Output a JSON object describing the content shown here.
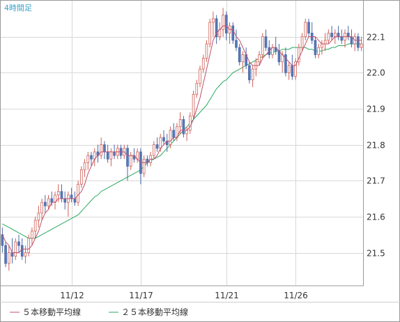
{
  "period_label": "4時間足",
  "legend": [
    {
      "label": "５本移動平均線",
      "color": "#c0506a"
    },
    {
      "label": "２５本移動平均線",
      "color": "#2aa860"
    }
  ],
  "colors": {
    "up_fill": "#ffffff",
    "up_stroke": "#d06058",
    "down_fill": "#5878b8",
    "down_stroke": "#4868a8",
    "grid": "#d8d8d8",
    "frame": "#999999"
  },
  "chart_data": {
    "type": "candlestick",
    "ylim": [
      21.41,
      22.2
    ],
    "yticks": [
      21.5,
      21.6,
      21.7,
      21.8,
      21.9,
      22.0,
      22.1
    ],
    "ytick_labels": [
      "21.5",
      "21.6",
      "21.7",
      "21.8",
      "21.9",
      "22.0",
      "22.1"
    ],
    "x_tick_labels": [
      {
        "label": "11/12",
        "index": 21
      },
      {
        "label": "11/17",
        "index": 42
      },
      {
        "label": "11/21",
        "index": 68
      },
      {
        "label": "11/26",
        "index": 89
      }
    ],
    "n_candles": 110,
    "candles": [
      [
        21.55,
        21.57,
        21.5,
        21.52
      ],
      [
        21.52,
        21.53,
        21.46,
        21.47
      ],
      [
        21.47,
        21.52,
        21.45,
        21.5
      ],
      [
        21.5,
        21.54,
        21.47,
        21.49
      ],
      [
        21.49,
        21.54,
        21.48,
        21.53
      ],
      [
        21.53,
        21.55,
        21.5,
        21.52
      ],
      [
        21.52,
        21.54,
        21.48,
        21.49
      ],
      [
        21.49,
        21.52,
        21.47,
        21.5
      ],
      [
        21.5,
        21.55,
        21.49,
        21.54
      ],
      [
        21.54,
        21.57,
        21.52,
        21.56
      ],
      [
        21.56,
        21.6,
        21.54,
        21.59
      ],
      [
        21.59,
        21.63,
        21.57,
        21.61
      ],
      [
        21.61,
        21.65,
        21.59,
        21.64
      ],
      [
        21.64,
        21.66,
        21.61,
        21.63
      ],
      [
        21.63,
        21.66,
        21.62,
        21.65
      ],
      [
        21.65,
        21.67,
        21.63,
        21.64
      ],
      [
        21.64,
        21.67,
        21.62,
        21.66
      ],
      [
        21.66,
        21.69,
        21.64,
        21.67
      ],
      [
        21.67,
        21.69,
        21.64,
        21.65
      ],
      [
        21.65,
        21.67,
        21.62,
        21.64
      ],
      [
        21.64,
        21.67,
        21.6,
        21.66
      ],
      [
        21.66,
        21.68,
        21.64,
        21.65
      ],
      [
        21.65,
        21.67,
        21.63,
        21.64
      ],
      [
        21.64,
        21.7,
        21.63,
        21.69
      ],
      [
        21.69,
        21.74,
        21.68,
        21.73
      ],
      [
        21.73,
        21.76,
        21.71,
        21.75
      ],
      [
        21.75,
        21.78,
        21.73,
        21.77
      ],
      [
        21.77,
        21.78,
        21.74,
        21.76
      ],
      [
        21.76,
        21.79,
        21.74,
        21.78
      ],
      [
        21.78,
        21.8,
        21.75,
        21.77
      ],
      [
        21.77,
        21.82,
        21.76,
        21.8
      ],
      [
        21.8,
        21.81,
        21.76,
        21.78
      ],
      [
        21.78,
        21.8,
        21.75,
        21.76
      ],
      [
        21.76,
        21.79,
        21.74,
        21.78
      ],
      [
        21.78,
        21.8,
        21.76,
        21.77
      ],
      [
        21.77,
        21.8,
        21.76,
        21.79
      ],
      [
        21.79,
        21.8,
        21.76,
        21.77
      ],
      [
        21.77,
        21.8,
        21.76,
        21.79
      ],
      [
        21.79,
        21.8,
        21.7,
        21.74
      ],
      [
        21.74,
        21.78,
        21.73,
        21.77
      ],
      [
        21.77,
        21.79,
        21.75,
        21.76
      ],
      [
        21.76,
        21.79,
        21.75,
        21.78
      ],
      [
        21.78,
        21.79,
        21.69,
        21.72
      ],
      [
        21.72,
        21.77,
        21.71,
        21.76
      ],
      [
        21.76,
        21.77,
        21.74,
        21.75
      ],
      [
        21.75,
        21.78,
        21.74,
        21.77
      ],
      [
        21.77,
        21.81,
        21.76,
        21.8
      ],
      [
        21.8,
        21.82,
        21.78,
        21.79
      ],
      [
        21.79,
        21.83,
        21.78,
        21.82
      ],
      [
        21.82,
        21.84,
        21.8,
        21.81
      ],
      [
        21.81,
        21.83,
        21.78,
        21.8
      ],
      [
        21.8,
        21.85,
        21.79,
        21.84
      ],
      [
        21.84,
        21.86,
        21.81,
        21.82
      ],
      [
        21.82,
        21.86,
        21.81,
        21.85
      ],
      [
        21.85,
        21.89,
        21.83,
        21.87
      ],
      [
        21.87,
        21.88,
        21.82,
        21.83
      ],
      [
        21.83,
        21.85,
        21.81,
        21.84
      ],
      [
        21.84,
        21.89,
        21.83,
        21.88
      ],
      [
        21.88,
        21.95,
        21.87,
        21.94
      ],
      [
        21.94,
        21.98,
        21.93,
        21.97
      ],
      [
        21.97,
        22.02,
        21.96,
        22.01
      ],
      [
        22.01,
        22.05,
        22.0,
        22.04
      ],
      [
        22.04,
        22.09,
        22.03,
        22.08
      ],
      [
        22.08,
        22.15,
        22.07,
        22.14
      ],
      [
        22.14,
        22.17,
        22.1,
        22.15
      ],
      [
        22.15,
        22.16,
        22.08,
        22.1
      ],
      [
        22.1,
        22.14,
        22.09,
        22.12
      ],
      [
        22.12,
        22.18,
        22.1,
        22.16
      ],
      [
        22.16,
        22.17,
        22.09,
        22.11
      ],
      [
        22.11,
        22.14,
        22.08,
        22.13
      ],
      [
        22.13,
        22.14,
        22.08,
        22.09
      ],
      [
        22.09,
        22.12,
        22.06,
        22.07
      ],
      [
        22.07,
        22.08,
        22.02,
        22.03
      ],
      [
        22.03,
        22.06,
        22.0,
        22.05
      ],
      [
        22.05,
        22.07,
        22.01,
        22.02
      ],
      [
        22.02,
        22.03,
        21.97,
        21.98
      ],
      [
        21.98,
        22.02,
        21.96,
        22.01
      ],
      [
        22.01,
        22.04,
        21.99,
        22.03
      ],
      [
        22.03,
        22.06,
        22.02,
        22.05
      ],
      [
        22.05,
        22.11,
        22.04,
        22.1
      ],
      [
        22.1,
        22.12,
        22.06,
        22.07
      ],
      [
        22.07,
        22.09,
        22.04,
        22.05
      ],
      [
        22.05,
        22.08,
        22.04,
        22.07
      ],
      [
        22.07,
        22.1,
        22.05,
        22.06
      ],
      [
        22.06,
        22.08,
        22.02,
        22.03
      ],
      [
        22.03,
        22.06,
        22.0,
        22.05
      ],
      [
        22.05,
        22.07,
        21.99,
        22.0
      ],
      [
        22.0,
        22.03,
        21.98,
        22.02
      ],
      [
        22.02,
        22.05,
        21.98,
        21.99
      ],
      [
        21.99,
        22.04,
        21.98,
        22.03
      ],
      [
        22.03,
        22.08,
        22.02,
        22.07
      ],
      [
        22.07,
        22.11,
        22.06,
        22.1
      ],
      [
        22.1,
        22.15,
        22.09,
        22.14
      ],
      [
        22.14,
        22.15,
        22.1,
        22.11
      ],
      [
        22.11,
        22.14,
        22.08,
        22.09
      ],
      [
        22.09,
        22.1,
        22.04,
        22.05
      ],
      [
        22.05,
        22.08,
        22.04,
        22.07
      ],
      [
        22.07,
        22.09,
        22.05,
        22.08
      ],
      [
        22.08,
        22.11,
        22.06,
        22.09
      ],
      [
        22.09,
        22.12,
        22.08,
        22.11
      ],
      [
        22.11,
        22.13,
        22.09,
        22.1
      ],
      [
        22.1,
        22.12,
        22.08,
        22.11
      ],
      [
        22.11,
        22.13,
        22.09,
        22.1
      ],
      [
        22.1,
        22.12,
        22.08,
        22.09
      ],
      [
        22.09,
        22.12,
        22.07,
        22.11
      ],
      [
        22.11,
        22.13,
        22.09,
        22.1
      ],
      [
        22.1,
        22.12,
        22.07,
        22.08
      ],
      [
        22.08,
        22.11,
        22.06,
        22.1
      ],
      [
        22.1,
        22.11,
        22.06,
        22.07
      ],
      [
        22.07,
        22.1,
        22.06,
        22.08
      ]
    ],
    "series": [
      {
        "name": "５本移動平均線",
        "color": "#c0506a",
        "values": [
          21.55,
          21.53,
          21.52,
          21.5,
          21.5,
          21.5,
          21.51,
          21.51,
          21.51,
          21.52,
          21.54,
          21.56,
          21.59,
          21.61,
          21.62,
          21.64,
          21.64,
          21.65,
          21.65,
          21.65,
          21.65,
          21.65,
          21.65,
          21.66,
          21.67,
          21.69,
          21.72,
          21.74,
          21.76,
          21.77,
          21.78,
          21.78,
          21.78,
          21.78,
          21.78,
          21.78,
          21.78,
          21.78,
          21.77,
          21.77,
          21.77,
          21.76,
          21.75,
          21.75,
          21.75,
          21.76,
          21.76,
          21.77,
          21.79,
          21.8,
          21.81,
          21.81,
          21.82,
          21.82,
          21.84,
          21.84,
          21.84,
          21.85,
          21.87,
          21.9,
          21.93,
          21.97,
          22.01,
          22.05,
          22.09,
          22.11,
          22.12,
          22.13,
          22.13,
          22.12,
          22.12,
          22.1,
          22.09,
          22.07,
          22.05,
          22.03,
          22.02,
          22.02,
          22.02,
          22.04,
          22.05,
          22.06,
          22.07,
          22.07,
          22.06,
          22.05,
          22.04,
          22.03,
          22.02,
          22.02,
          22.04,
          22.06,
          22.08,
          22.1,
          22.1,
          22.1,
          22.09,
          22.08,
          22.08,
          22.08,
          22.09,
          22.1,
          22.1,
          22.1,
          22.1,
          22.1,
          22.1,
          22.09,
          22.09,
          22.09
        ]
      },
      {
        "name": "２５本移動平均線",
        "color": "#2aa860",
        "values": [
          21.58,
          21.575,
          21.57,
          21.565,
          21.56,
          21.555,
          21.55,
          21.545,
          21.54,
          21.54,
          21.54,
          21.545,
          21.55,
          21.555,
          21.56,
          21.565,
          21.57,
          21.575,
          21.58,
          21.585,
          21.59,
          21.595,
          21.6,
          21.605,
          21.615,
          21.625,
          21.635,
          21.645,
          21.655,
          21.66,
          21.67,
          21.675,
          21.68,
          21.685,
          21.69,
          21.695,
          21.7,
          21.705,
          21.71,
          21.715,
          21.72,
          21.725,
          21.73,
          21.74,
          21.75,
          21.755,
          21.76,
          21.765,
          21.77,
          21.78,
          21.79,
          21.8,
          21.81,
          21.82,
          21.83,
          21.84,
          21.85,
          21.86,
          21.87,
          21.88,
          21.89,
          21.9,
          21.91,
          21.925,
          21.94,
          21.955,
          21.965,
          21.975,
          21.98,
          21.99,
          22.0,
          22.005,
          22.01,
          22.015,
          22.02,
          22.025,
          22.03,
          22.035,
          22.04,
          22.045,
          22.05,
          22.055,
          22.055,
          22.06,
          22.06,
          22.065,
          22.065,
          22.065,
          22.07,
          22.07,
          22.07,
          22.07,
          22.07,
          22.065,
          22.065,
          22.06,
          22.06,
          22.06,
          22.065,
          22.065,
          22.07,
          22.07,
          22.075,
          22.075,
          22.075,
          22.08,
          22.08,
          22.08,
          22.08,
          22.08
        ]
      }
    ],
    "grid": true
  }
}
